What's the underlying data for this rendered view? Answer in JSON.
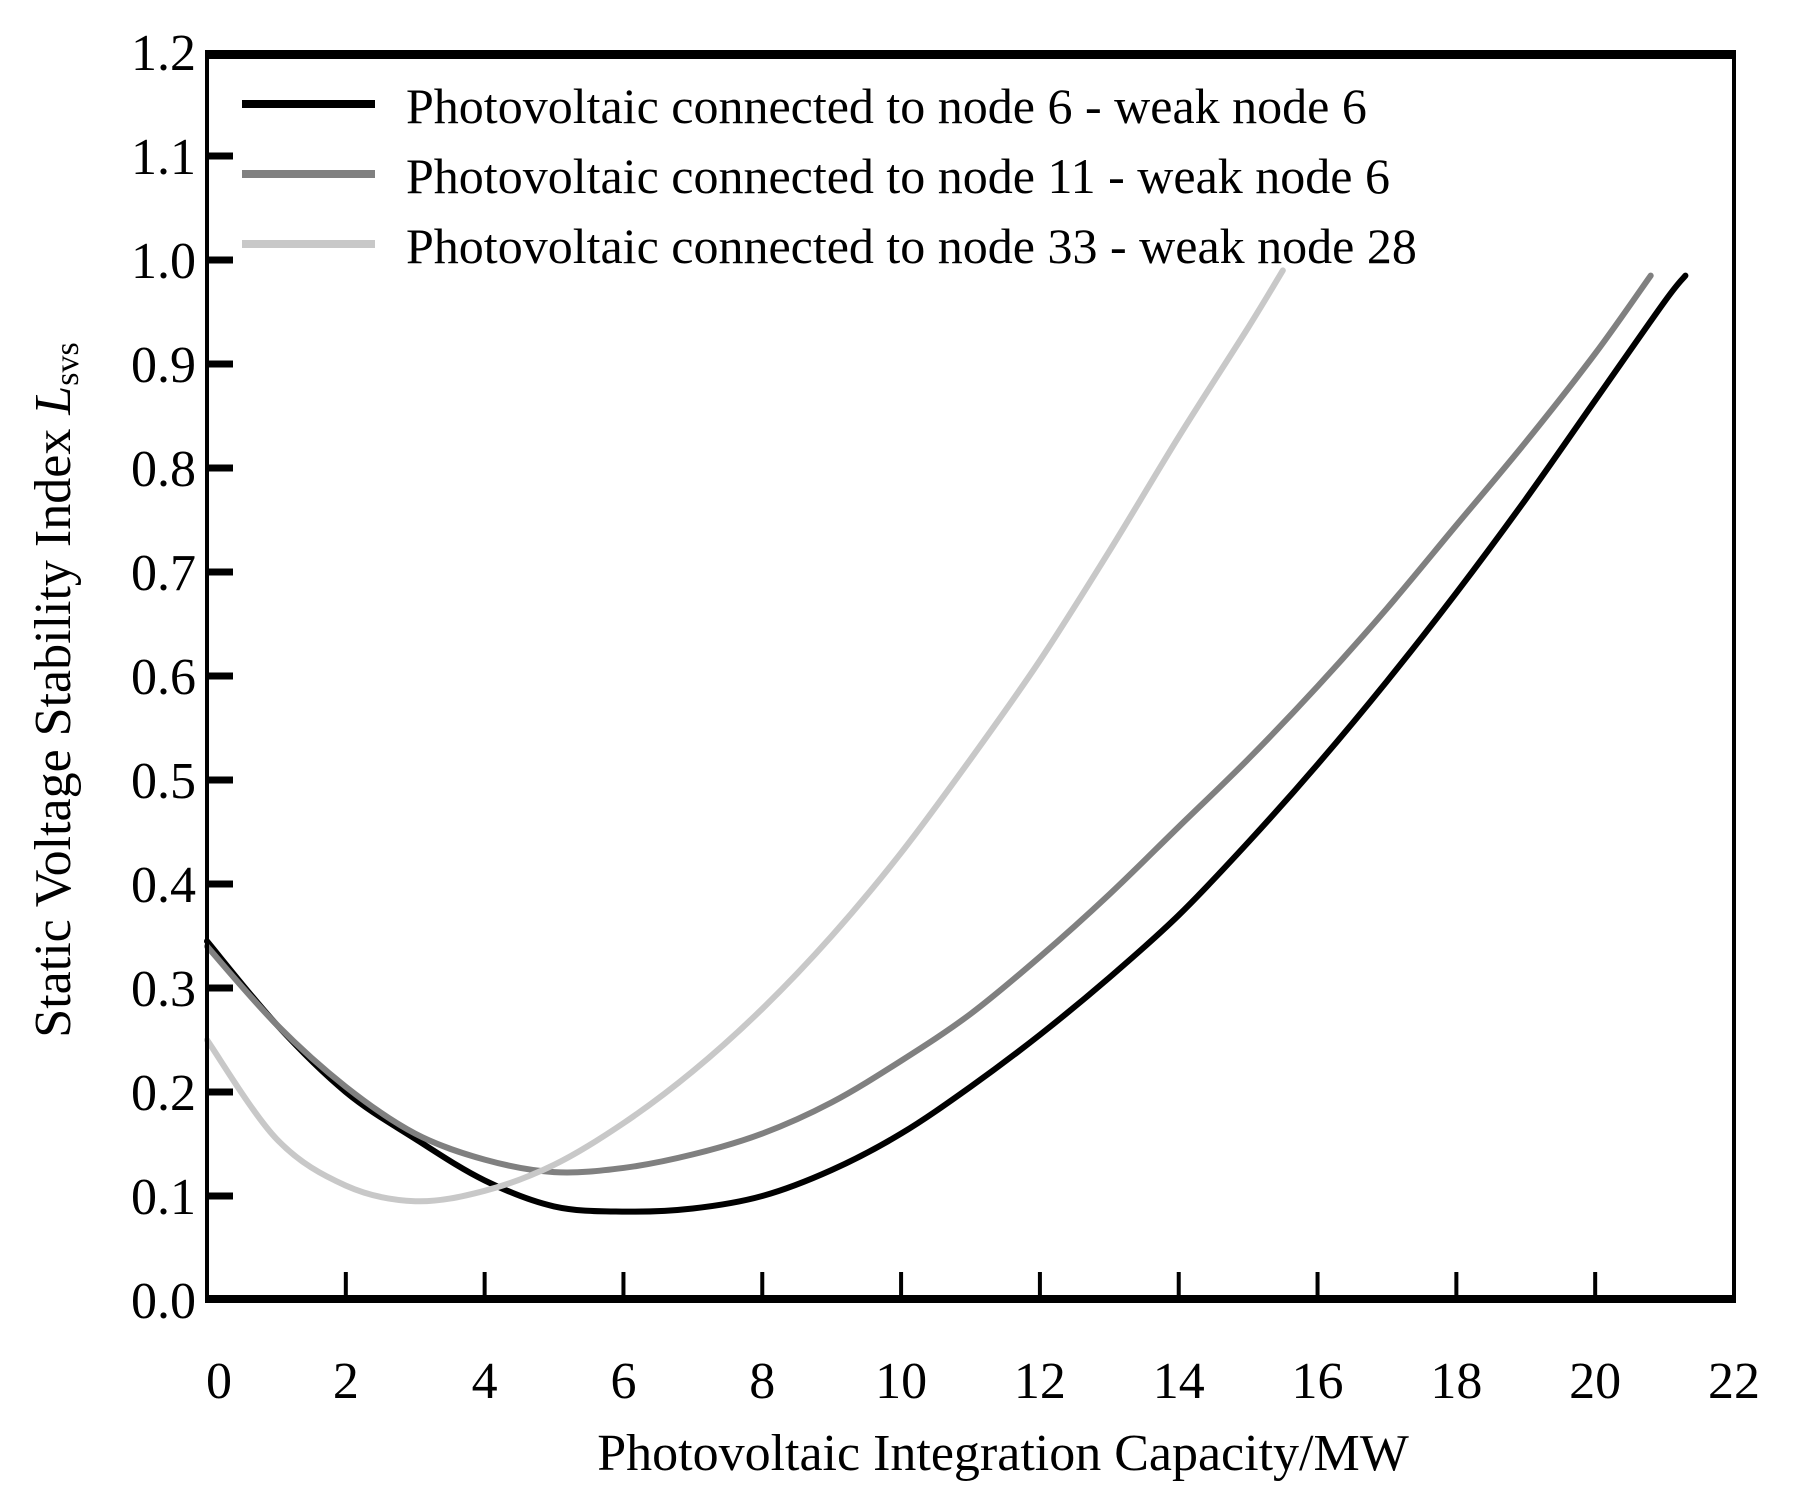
{
  "chart_data": {
    "type": "line",
    "title": "",
    "xlabel": "Photovoltaic Integration Capacity/MW",
    "ylabel": "Static Voltage Stability Index",
    "ylabel_symbol": "L",
    "ylabel_subscript": "svs",
    "xlim": [
      0,
      22
    ],
    "ylim": [
      0,
      1.2
    ],
    "xticks": [
      "0",
      "2",
      "4",
      "6",
      "8",
      "10",
      "12",
      "14",
      "16",
      "18",
      "20",
      "22"
    ],
    "yticks": [
      "0.0",
      "0.1",
      "0.2",
      "0.3",
      "0.4",
      "0.5",
      "0.6",
      "0.7",
      "0.8",
      "0.9",
      "1.0",
      "1.1",
      "1.2"
    ],
    "grid": false,
    "legend_position": "top-left",
    "series": [
      {
        "name": "Photovoltaic connected to node 6 - weak node 6",
        "color": "#000000",
        "x": [
          0,
          1,
          2,
          3,
          4,
          5,
          6,
          7,
          8,
          9,
          10,
          11,
          12,
          13,
          14,
          15,
          16,
          17,
          18,
          19,
          20,
          21,
          21.3
        ],
        "y": [
          0.345,
          0.265,
          0.2,
          0.155,
          0.115,
          0.09,
          0.085,
          0.088,
          0.1,
          0.125,
          0.16,
          0.205,
          0.255,
          0.31,
          0.37,
          0.44,
          0.515,
          0.595,
          0.68,
          0.77,
          0.865,
          0.96,
          0.985
        ]
      },
      {
        "name": "Photovoltaic connected to node 11 - weak node 6",
        "color": "#808080",
        "x": [
          0,
          1,
          2,
          3,
          4,
          5,
          6,
          7,
          8,
          9,
          10,
          11,
          12,
          13,
          14,
          15,
          16,
          17,
          18,
          19,
          20,
          20.8
        ],
        "y": [
          0.34,
          0.265,
          0.205,
          0.16,
          0.135,
          0.123,
          0.127,
          0.14,
          0.16,
          0.19,
          0.23,
          0.275,
          0.33,
          0.39,
          0.455,
          0.52,
          0.59,
          0.665,
          0.745,
          0.825,
          0.91,
          0.985
        ]
      },
      {
        "name": "Photovoltaic connected to node 33 - weak node 28",
        "color": "#c8c8c8",
        "x": [
          0,
          1,
          2,
          3,
          4,
          5,
          6,
          7,
          8,
          9,
          10,
          11,
          12,
          13,
          14,
          15,
          15.5
        ],
        "y": [
          0.25,
          0.155,
          0.11,
          0.095,
          0.105,
          0.13,
          0.17,
          0.22,
          0.28,
          0.35,
          0.43,
          0.52,
          0.615,
          0.72,
          0.83,
          0.935,
          0.99
        ]
      }
    ]
  }
}
